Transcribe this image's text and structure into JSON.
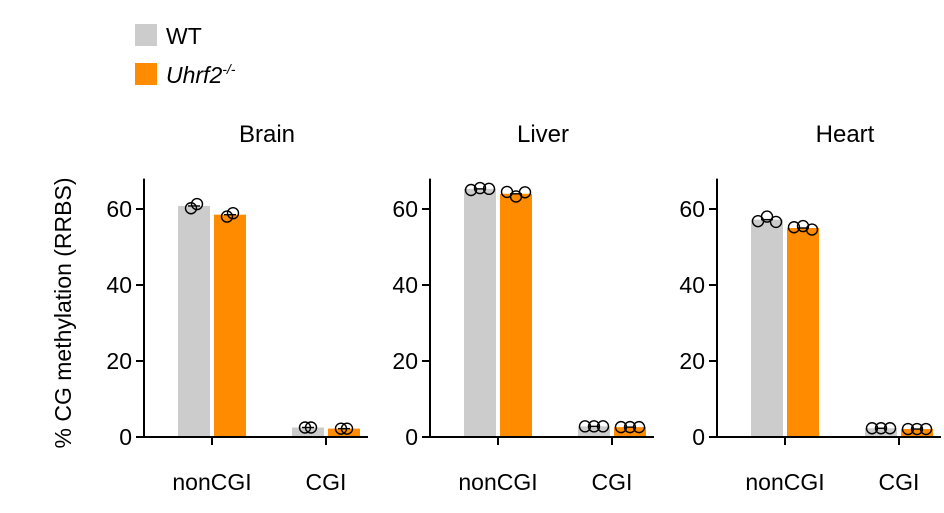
{
  "legend": {
    "entries": [
      {
        "label": "WT",
        "color": "#cccccc"
      },
      {
        "label": "Uhrf2",
        "superscript": "-/-",
        "color": "#ff8c00"
      }
    ]
  },
  "chart_data": [
    {
      "type": "bar",
      "title": "Brain",
      "categories": [
        "nonCGI",
        "CGI"
      ],
      "ylabel": "% CG methylation (RRBS)",
      "ylim": [
        0,
        68
      ],
      "yticks": [
        0,
        20,
        40,
        60
      ],
      "series": [
        {
          "name": "WT",
          "color": "#cccccc",
          "values": [
            60.8,
            2.5
          ],
          "points": [
            [
              60.2,
              61.3
            ],
            [
              2.5,
              2.5
            ]
          ]
        },
        {
          "name": "Uhrf2-/-",
          "color": "#ff8c00",
          "values": [
            58.5,
            2.2
          ],
          "points": [
            [
              58.0,
              58.9
            ],
            [
              2.2,
              2.2
            ]
          ]
        }
      ]
    },
    {
      "type": "bar",
      "title": "Liver",
      "categories": [
        "nonCGI",
        "CGI"
      ],
      "ylim": [
        0,
        68
      ],
      "yticks": [
        0,
        20,
        40,
        60
      ],
      "series": [
        {
          "name": "WT",
          "color": "#cccccc",
          "values": [
            65.3,
            2.8
          ],
          "points": [
            [
              65.0,
              65.5,
              65.3
            ],
            [
              2.8,
              2.8,
              2.8
            ]
          ]
        },
        {
          "name": "Uhrf2-/-",
          "color": "#ff8c00",
          "values": [
            64.0,
            2.6
          ],
          "points": [
            [
              64.5,
              63.3,
              64.4
            ],
            [
              2.6,
              2.6,
              2.6
            ]
          ]
        }
      ]
    },
    {
      "type": "bar",
      "title": "Heart",
      "categories": [
        "nonCGI",
        "CGI"
      ],
      "ylim": [
        0,
        68
      ],
      "yticks": [
        0,
        20,
        40,
        60
      ],
      "series": [
        {
          "name": "WT",
          "color": "#cccccc",
          "values": [
            57.2,
            2.3
          ],
          "points": [
            [
              56.8,
              58.0,
              56.6
            ],
            [
              2.3,
              2.3,
              2.3
            ]
          ]
        },
        {
          "name": "Uhrf2-/-",
          "color": "#ff8c00",
          "values": [
            55.0,
            2.1
          ],
          "points": [
            [
              55.2,
              55.5,
              54.6
            ],
            [
              2.1,
              2.1,
              2.1
            ]
          ]
        }
      ]
    }
  ]
}
